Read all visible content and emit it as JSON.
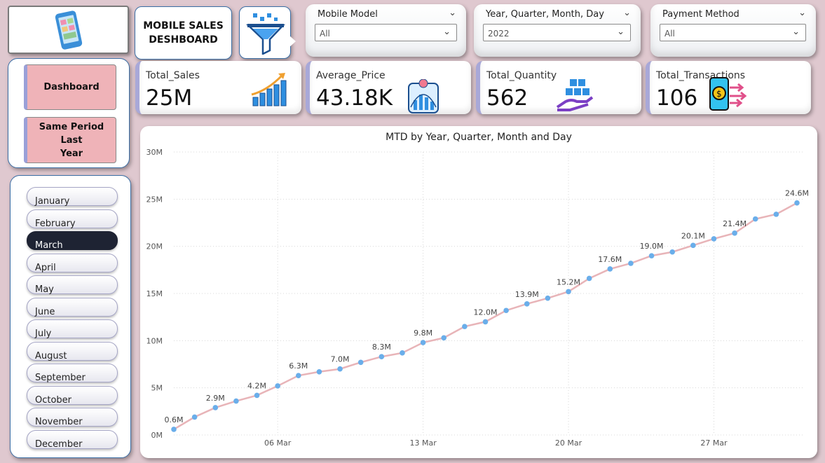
{
  "header": {
    "title_line1": "MOBILE SALES",
    "title_line2": "DESHBOARD"
  },
  "filters": [
    {
      "title": "Mobile Model",
      "value": "All"
    },
    {
      "title": "Year, Quarter, Month, Day",
      "value": "2022"
    },
    {
      "title": "Payment Method",
      "value": "All"
    }
  ],
  "kpis": [
    {
      "label": "Total_Sales",
      "value": "25M",
      "icon": "bar-growth-icon"
    },
    {
      "label": "Average_Price",
      "value": "43.18K",
      "icon": "price-chart-icon"
    },
    {
      "label": "Total_Quantity",
      "value": "562",
      "icon": "boxes-hand-icon"
    },
    {
      "label": "Total_Transactions",
      "value": "106",
      "icon": "phone-transfer-icon"
    }
  ],
  "nav": {
    "dashboard_label": "Dashboard",
    "same_period_line1": "Same Period Last",
    "same_period_line2": "Year"
  },
  "months": {
    "items": [
      "January",
      "February",
      "March",
      "April",
      "May",
      "June",
      "July",
      "August",
      "September",
      "October",
      "November",
      "December"
    ],
    "selected": "March"
  },
  "colors": {
    "background": "#dfc8cf",
    "line": "#e8b4b8",
    "marker": "#6aaeea",
    "nav_button": "#efb3b8",
    "selected_month": "#1e2333"
  },
  "chart_data": {
    "type": "line",
    "title": "MTD by Year, Quarter, Month and Day",
    "xlabel": "",
    "ylabel": "",
    "ylim": [
      0,
      30
    ],
    "yunit": "M",
    "yticks": [
      "0M",
      "5M",
      "10M",
      "15M",
      "20M",
      "25M",
      "30M"
    ],
    "xtick_labels": [
      {
        "day": 6,
        "label": "06 Mar"
      },
      {
        "day": 13,
        "label": "13 Mar"
      },
      {
        "day": 20,
        "label": "20 Mar"
      },
      {
        "day": 27,
        "label": "27 Mar"
      }
    ],
    "days": [
      1,
      2,
      3,
      4,
      5,
      6,
      7,
      8,
      9,
      10,
      11,
      12,
      13,
      14,
      15,
      16,
      17,
      18,
      19,
      20,
      21,
      22,
      23,
      24,
      25,
      26,
      27,
      28,
      29,
      30,
      31
    ],
    "values": [
      0.6,
      1.9,
      2.9,
      3.6,
      4.2,
      5.2,
      6.3,
      6.7,
      7.0,
      7.7,
      8.3,
      8.7,
      9.8,
      10.3,
      11.5,
      12.0,
      13.2,
      13.9,
      14.5,
      15.2,
      16.6,
      17.6,
      18.2,
      19.0,
      19.4,
      20.1,
      20.8,
      21.4,
      22.9,
      23.4,
      24.6
    ],
    "data_labels": [
      {
        "day": 1,
        "text": "0.6M"
      },
      {
        "day": 3,
        "text": "2.9M"
      },
      {
        "day": 5,
        "text": "4.2M"
      },
      {
        "day": 7,
        "text": "6.3M"
      },
      {
        "day": 9,
        "text": "7.0M"
      },
      {
        "day": 11,
        "text": "8.3M"
      },
      {
        "day": 13,
        "text": "9.8M"
      },
      {
        "day": 16,
        "text": "12.0M"
      },
      {
        "day": 18,
        "text": "13.9M"
      },
      {
        "day": 20,
        "text": "15.2M"
      },
      {
        "day": 22,
        "text": "17.6M"
      },
      {
        "day": 24,
        "text": "19.0M"
      },
      {
        "day": 26,
        "text": "20.1M"
      },
      {
        "day": 28,
        "text": "21.4M"
      },
      {
        "day": 31,
        "text": "24.6M"
      }
    ],
    "grid": true,
    "legend": "none"
  }
}
